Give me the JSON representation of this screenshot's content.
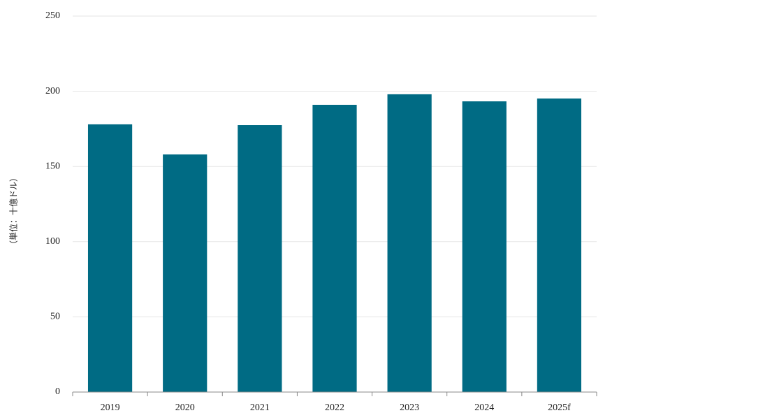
{
  "chart_data": {
    "type": "bar",
    "y_label": "（単位：十億ドル）",
    "categories": [
      "2019",
      "2020",
      "2021",
      "2022",
      "2023",
      "2024",
      "2025f"
    ],
    "values": [
      178,
      158,
      177.5,
      191,
      198,
      193.3,
      195.2
    ],
    "color": "#006b84",
    "ylim": [
      0,
      250
    ],
    "yticks": [
      0,
      50,
      100,
      150,
      200,
      250
    ],
    "grid": true
  }
}
